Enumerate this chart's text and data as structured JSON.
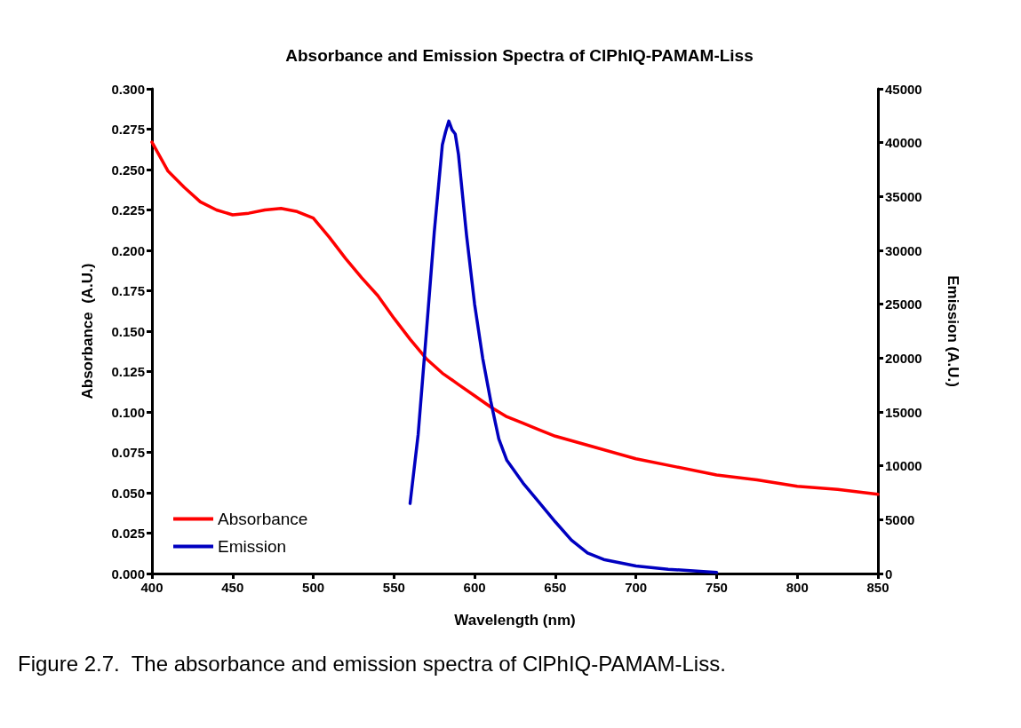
{
  "chart_data": {
    "type": "line",
    "title": "Absorbance and Emission Spectra of ClPhIQ-PAMAM-Liss",
    "xlabel": "Wavelength (nm)",
    "ylabel": "Absorbance  (A.U.)",
    "y2label": "Emission (A.U.)",
    "annotations": [
      "Figure 2.7.  The absorbance and emission spectra of ClPhIQ-PAMAM-Liss."
    ],
    "xlim": [
      400,
      850
    ],
    "xticks": [
      400,
      450,
      500,
      550,
      600,
      650,
      700,
      750,
      800,
      850
    ],
    "ylim": [
      0,
      0.3
    ],
    "yticks": [
      {
        "value": 0,
        "label": "0.000"
      },
      {
        "value": 0.025,
        "label": "0.025"
      },
      {
        "value": 0.05,
        "label": "0.050"
      },
      {
        "value": 0.075,
        "label": "0.075"
      },
      {
        "value": 0.1,
        "label": "0.100"
      },
      {
        "value": 0.125,
        "label": "0.125"
      },
      {
        "value": 0.15,
        "label": "0.150"
      },
      {
        "value": 0.175,
        "label": "0.175"
      },
      {
        "value": 0.2,
        "label": "0.200"
      },
      {
        "value": 0.225,
        "label": "0.225"
      },
      {
        "value": 0.25,
        "label": "0.250"
      },
      {
        "value": 0.275,
        "label": "0.275"
      },
      {
        "value": 0.3,
        "label": "0.300"
      }
    ],
    "y2lim": [
      0,
      45000
    ],
    "y2ticks": [
      0,
      5000,
      10000,
      15000,
      20000,
      25000,
      30000,
      35000,
      40000,
      45000
    ],
    "grid": false,
    "legend": "bottom left",
    "marker": "none",
    "line_style": "solid",
    "series": [
      {
        "name": "Absorbance",
        "color": "#ff0000",
        "x": [
          400,
          410,
          420,
          430,
          440,
          450,
          460,
          470,
          480,
          490,
          500,
          510,
          520,
          530,
          540,
          550,
          560,
          570,
          580,
          590,
          600,
          610,
          620,
          630,
          640,
          650,
          675,
          700,
          725,
          750,
          775,
          800,
          825,
          850
        ],
        "values": [
          0.267,
          0.249,
          0.239,
          0.23,
          0.225,
          0.222,
          0.223,
          0.225,
          0.226,
          0.224,
          0.22,
          0.208,
          0.195,
          0.183,
          0.172,
          0.158,
          0.145,
          0.133,
          0.124,
          0.117,
          0.11,
          0.103,
          0.097,
          0.093,
          0.089,
          0.085,
          0.078,
          0.071,
          0.066,
          0.061,
          0.058,
          0.054,
          0.052,
          0.049
        ]
      },
      {
        "name": "Emission",
        "color": "#0000c0",
        "axis": "y2",
        "x": [
          560,
          565,
          570,
          575,
          580,
          582,
          584,
          586,
          588,
          590,
          595,
          600,
          605,
          610,
          615,
          620,
          630,
          640,
          650,
          660,
          670,
          680,
          700,
          720,
          750
        ],
        "values": [
          6500,
          12900,
          22200,
          31700,
          39800,
          41000,
          42000,
          41200,
          40800,
          38900,
          31400,
          25000,
          20000,
          16000,
          12500,
          10500,
          8400,
          6600,
          4800,
          3100,
          1900,
          1300,
          700,
          400,
          100
        ]
      }
    ]
  }
}
